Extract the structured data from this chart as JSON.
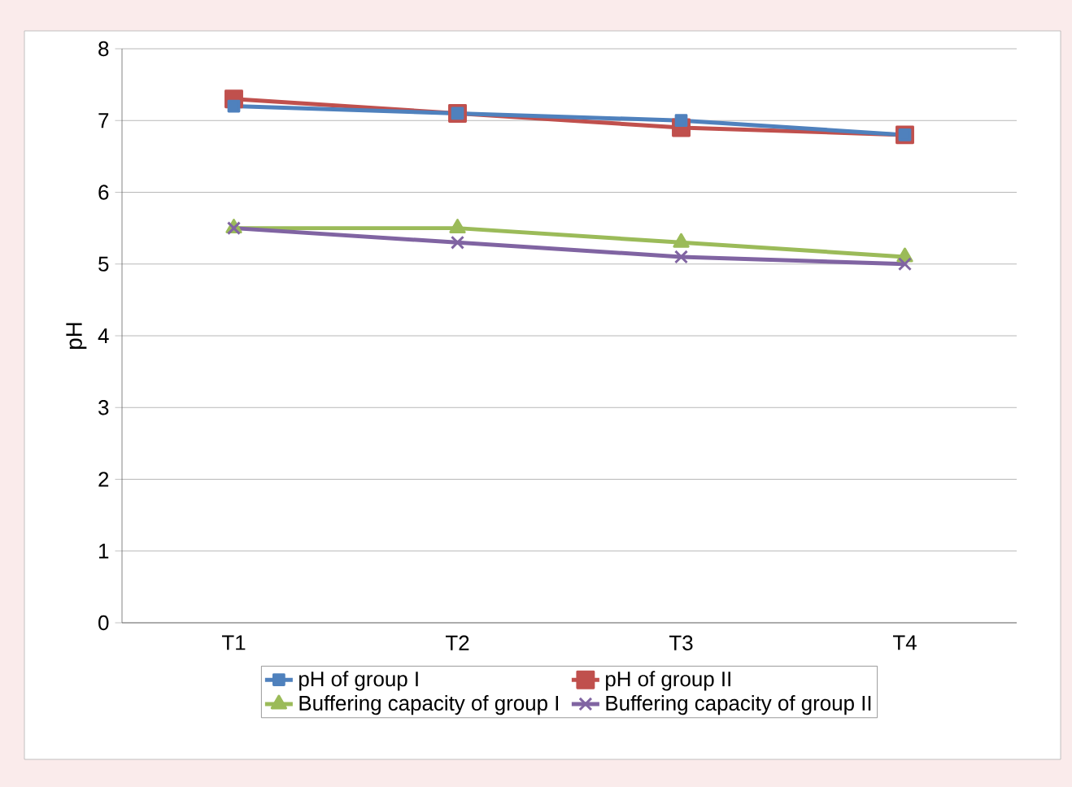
{
  "chart_data": {
    "type": "line",
    "ylabel": "pH",
    "categories": [
      "T1",
      "T2",
      "T3",
      "T4"
    ],
    "series": [
      {
        "name": "pH of group I",
        "color": "#4f81bd",
        "marker": "square",
        "values": [
          7.2,
          7.1,
          7.0,
          6.8
        ]
      },
      {
        "name": "pH of group II",
        "color": "#c0504d",
        "marker": "square",
        "values": [
          7.3,
          7.1,
          6.9,
          6.8
        ]
      },
      {
        "name": "Buffering capacity of group I",
        "color": "#9bbb59",
        "marker": "triangle",
        "values": [
          5.5,
          5.5,
          5.3,
          5.1
        ]
      },
      {
        "name": "Buffering capacity of group II",
        "color": "#8064a2",
        "marker": "cross",
        "values": [
          5.5,
          5.3,
          5.1,
          5.0
        ]
      }
    ],
    "ylim": [
      0,
      8
    ],
    "yticks": [
      0,
      1,
      2,
      3,
      4,
      5,
      6,
      7,
      8
    ],
    "grid": "y",
    "legend": "bottom",
    "line_style": "solid"
  }
}
